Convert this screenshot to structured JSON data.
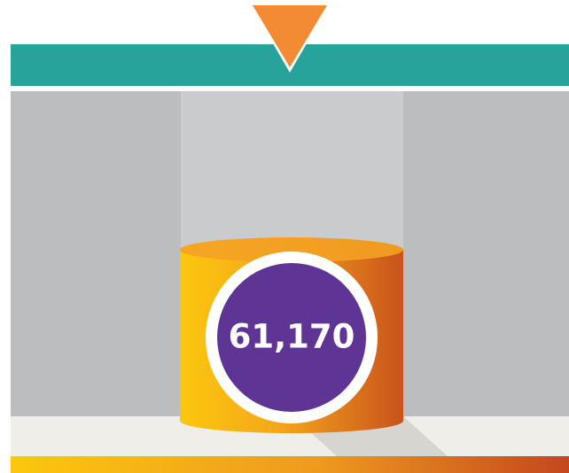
{
  "cylinder_label": "61,170"
}
